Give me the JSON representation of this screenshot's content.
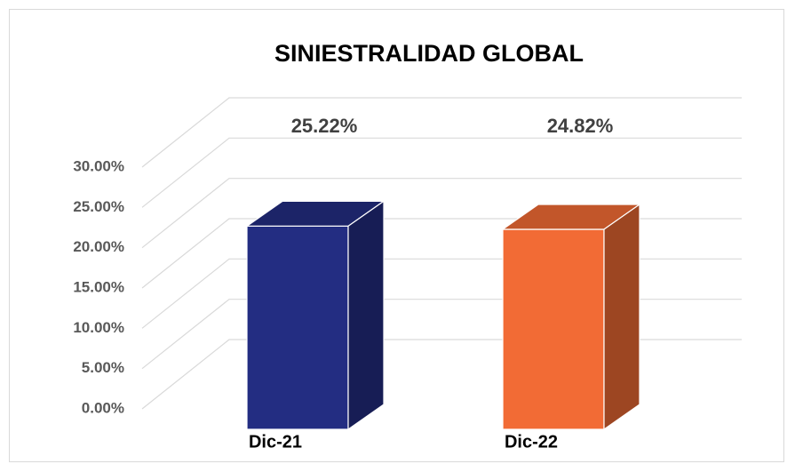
{
  "chart_data": {
    "type": "bar3d",
    "title": "SINIESTRALIDAD GLOBAL",
    "categories": [
      "Dic-21",
      "Dic-22"
    ],
    "values": [
      25.22,
      24.82
    ],
    "value_labels": [
      "25.22%",
      "24.82%"
    ],
    "colors": [
      "#232d82",
      "#f26b35"
    ],
    "ylim": [
      0,
      30
    ],
    "yticks": [
      {
        "value": 0,
        "label": "0.00%"
      },
      {
        "value": 5,
        "label": "5.00%"
      },
      {
        "value": 10,
        "label": "10.00%"
      },
      {
        "value": 15,
        "label": "15.00%"
      },
      {
        "value": 20,
        "label": "20.00%"
      },
      {
        "value": 25,
        "label": "25.00%"
      },
      {
        "value": 30,
        "label": "30.00%"
      }
    ],
    "grid": true
  }
}
